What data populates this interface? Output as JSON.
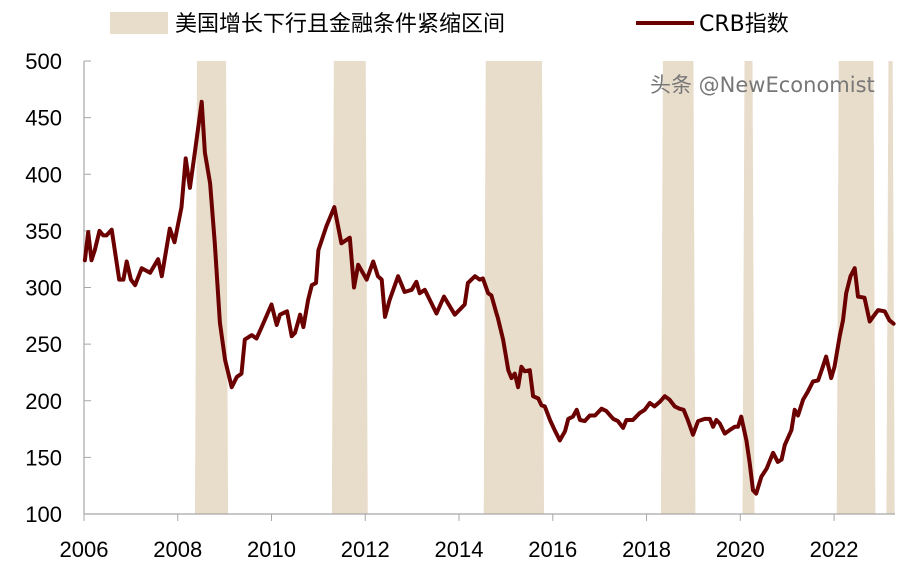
{
  "chart_data": {
    "type": "line",
    "title": "",
    "xlabel": "",
    "ylabel": "",
    "xlim": [
      2006,
      2023.3
    ],
    "ylim": [
      100,
      500
    ],
    "x_ticks": [
      "2006",
      "2008",
      "2010",
      "2012",
      "2014",
      "2016",
      "2018",
      "2020",
      "2022"
    ],
    "y_ticks": [
      "100",
      "150",
      "200",
      "250",
      "300",
      "350",
      "400",
      "450",
      "500"
    ],
    "grid": false,
    "legend_position": "top",
    "colors": {
      "line": "#6b0000",
      "band": "#e8dccb",
      "axis": "#a6a6a6"
    },
    "shaded_regions": {
      "name": "美国增长下行且金融条件紧缩区间",
      "ranges": [
        [
          2008.41,
          2009.03
        ],
        [
          2011.33,
          2012.01
        ],
        [
          2014.57,
          2015.77
        ],
        [
          2018.35,
          2019.0
        ],
        [
          2020.09,
          2020.26
        ],
        [
          2022.1,
          2022.84
        ],
        [
          2023.16,
          2023.25
        ]
      ]
    },
    "series": [
      {
        "name": "CRB指数",
        "x": [
          2006.02,
          2006.09,
          2006.16,
          2006.23,
          2006.33,
          2006.41,
          2006.48,
          2006.59,
          2006.75,
          2006.84,
          2006.91,
          2007.0,
          2007.09,
          2007.23,
          2007.41,
          2007.58,
          2007.66,
          2007.83,
          2007.93,
          2008.08,
          2008.17,
          2008.26,
          2008.37,
          2008.51,
          2008.58,
          2008.69,
          2008.79,
          2008.9,
          2009.01,
          2009.15,
          2009.26,
          2009.36,
          2009.43,
          2009.58,
          2009.68,
          2009.79,
          2010.0,
          2010.11,
          2010.18,
          2010.33,
          2010.43,
          2010.5,
          2010.61,
          2010.68,
          2010.78,
          2010.86,
          2010.95,
          2011.0,
          2011.17,
          2011.34,
          2011.49,
          2011.67,
          2011.76,
          2011.85,
          2012.03,
          2012.17,
          2012.27,
          2012.35,
          2012.42,
          2012.52,
          2012.7,
          2012.84,
          2012.99,
          2013.09,
          2013.16,
          2013.27,
          2013.52,
          2013.68,
          2013.91,
          2014.12,
          2014.19,
          2014.34,
          2014.44,
          2014.51,
          2014.62,
          2014.69,
          2014.8,
          2014.83,
          2014.94,
          2015.05,
          2015.12,
          2015.19,
          2015.26,
          2015.33,
          2015.4,
          2015.51,
          2015.58,
          2015.69,
          2015.76,
          2015.83,
          2015.94,
          2016.04,
          2016.15,
          2016.26,
          2016.33,
          2016.43,
          2016.51,
          2016.58,
          2016.68,
          2016.79,
          2016.9,
          2017.04,
          2017.14,
          2017.29,
          2017.39,
          2017.5,
          2017.57,
          2017.71,
          2017.85,
          2017.96,
          2018.07,
          2018.17,
          2018.28,
          2018.39,
          2018.49,
          2018.6,
          2018.7,
          2018.79,
          2018.88,
          2018.99,
          2019.1,
          2019.24,
          2019.35,
          2019.42,
          2019.49,
          2019.56,
          2019.67,
          2019.77,
          2019.88,
          2019.95,
          2020.02,
          2020.13,
          2020.2,
          2020.27,
          2020.34,
          2020.45,
          2020.56,
          2020.7,
          2020.8,
          2020.88,
          2020.95,
          2021.09,
          2021.16,
          2021.23,
          2021.34,
          2021.44,
          2021.55,
          2021.66,
          2021.76,
          2021.83,
          2021.94,
          2022.01,
          2022.12,
          2022.19,
          2022.26,
          2022.35,
          2022.44,
          2022.51,
          2022.65,
          2022.76,
          2022.83,
          2022.94,
          2023.08,
          2023.18,
          2023.27
        ],
        "values": [
          324,
          349,
          324,
          333,
          350,
          346,
          346,
          351,
          307,
          307,
          323,
          307,
          302,
          317,
          313,
          325,
          310,
          352,
          340,
          371,
          414,
          388,
          421,
          464,
          419,
          392,
          339,
          269,
          236,
          212,
          221,
          224,
          254,
          258,
          255,
          265,
          285,
          267,
          276,
          279,
          257,
          260,
          276,
          265,
          289,
          302,
          304,
          333,
          354,
          371,
          339,
          344,
          300,
          320,
          307,
          323,
          310,
          307,
          274,
          289,
          310,
          296,
          298,
          305,
          295,
          298,
          277,
          292,
          276,
          285,
          304,
          310,
          307,
          308,
          295,
          293,
          277,
          273,
          254,
          227,
          220,
          224,
          212,
          230,
          226,
          227,
          204,
          202,
          196,
          195,
          183,
          174,
          165,
          173,
          184,
          186,
          192,
          183,
          182,
          187,
          187,
          193,
          191,
          184,
          182,
          176,
          183,
          183,
          189,
          192,
          198,
          195,
          199,
          204,
          201,
          195,
          193,
          192,
          183,
          170,
          182,
          184,
          184,
          177,
          183,
          180,
          171,
          174,
          177,
          177,
          186,
          165,
          145,
          121,
          118,
          133,
          140,
          154,
          146,
          148,
          161,
          174,
          192,
          187,
          201,
          208,
          217,
          218,
          230,
          239,
          220,
          230,
          257,
          271,
          295,
          310,
          317,
          292,
          291,
          270,
          274,
          280,
          279,
          271,
          268
        ]
      }
    ]
  },
  "watermark": "头条 @NewEconomist"
}
